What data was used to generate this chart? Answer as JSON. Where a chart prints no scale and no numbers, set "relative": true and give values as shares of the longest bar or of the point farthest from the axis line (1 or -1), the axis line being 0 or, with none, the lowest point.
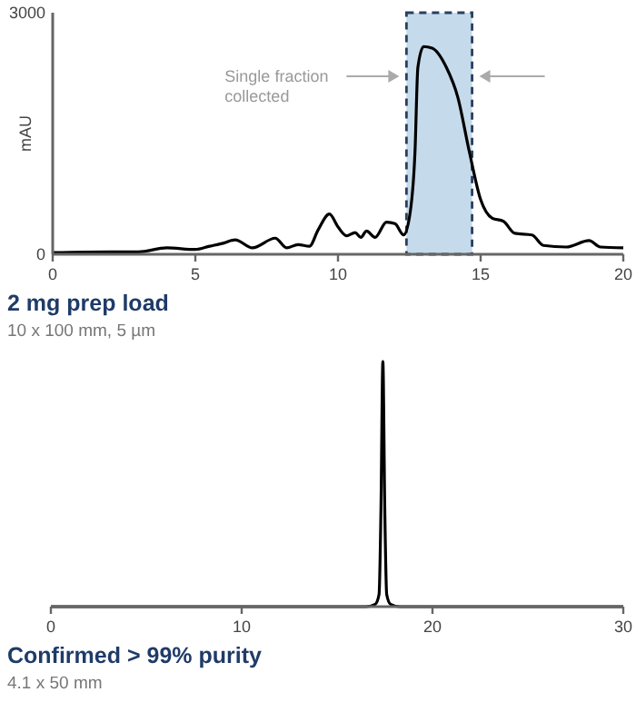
{
  "chart_data": [
    {
      "type": "line",
      "title": "2 mg prep load",
      "subtitle": "10 x 100 mm, 5 µm",
      "ylabel": "mAU",
      "xlim": [
        0,
        20
      ],
      "xticks": [
        0,
        5,
        10,
        15,
        20
      ],
      "ylim": [
        0,
        3000
      ],
      "yticks": [
        0,
        3000
      ],
      "grid": false,
      "bands": [
        {
          "axis": "x",
          "from": 12.4,
          "to": 14.7,
          "color": "#c5dbeb"
        }
      ],
      "annotations": [
        "Single fraction collected"
      ],
      "series": [
        {
          "color": "#000000",
          "x": [
            0,
            2,
            3,
            4,
            5,
            5.5,
            6,
            6.4,
            7,
            7.8,
            8.2,
            8.6,
            9,
            9.3,
            9.7,
            10,
            10.3,
            10.6,
            10.8,
            11,
            11.3,
            11.7,
            12,
            12.3,
            12.5,
            12.7,
            12.8,
            13,
            13.3,
            13.8,
            14.2,
            14.6,
            15,
            15.4,
            15.8,
            16.2,
            16.8,
            17.2,
            18,
            18.8,
            19.2,
            20
          ],
          "values": [
            20,
            30,
            30,
            80,
            60,
            100,
            140,
            180,
            80,
            200,
            80,
            120,
            100,
            300,
            500,
            340,
            230,
            270,
            210,
            290,
            210,
            400,
            380,
            240,
            450,
            1280,
            2320,
            2580,
            2560,
            2320,
            1950,
            1280,
            680,
            450,
            410,
            260,
            240,
            110,
            90,
            170,
            90,
            80
          ]
        }
      ]
    },
    {
      "type": "line",
      "title": "Confirmed > 99% purity",
      "subtitle": "4.1 x 50 mm",
      "relative": true,
      "xlim": [
        0,
        30
      ],
      "xticks": [
        0,
        10,
        20,
        30
      ],
      "grid": false,
      "series": [
        {
          "color": "#000000",
          "x": [
            0,
            16.5,
            17,
            17.2,
            17.3,
            17.4,
            17.5,
            17.6,
            17.8,
            18.3,
            30
          ],
          "values": [
            0,
            0,
            0.01,
            0.05,
            0.4,
            1,
            0.4,
            0.05,
            0.01,
            0,
            0
          ]
        }
      ]
    }
  ]
}
